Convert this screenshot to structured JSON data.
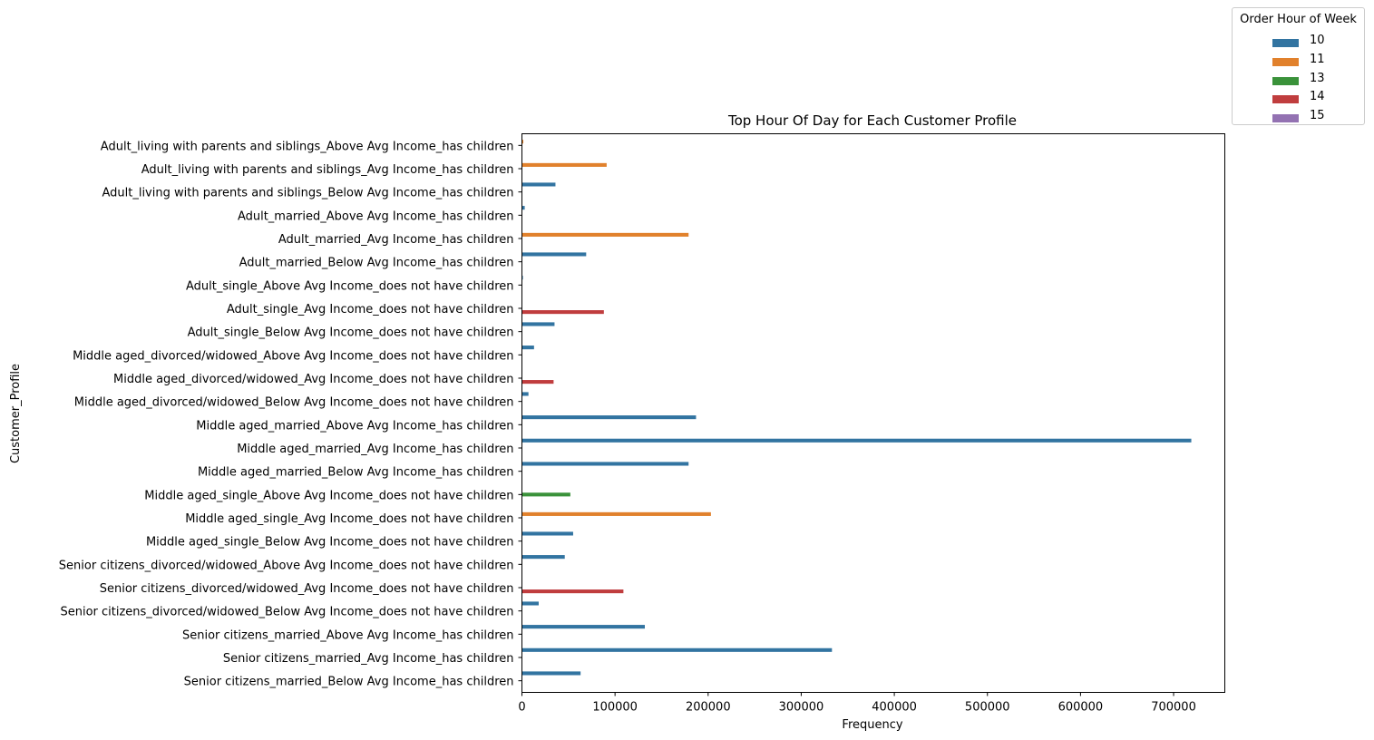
{
  "chart_data": {
    "type": "bar",
    "orientation": "horizontal",
    "title": "Top Hour Of Day for Each Customer Profile",
    "xlabel": "Frequency",
    "ylabel": "Customer_Profile",
    "xlim": [
      0,
      755000
    ],
    "xticks": [
      "0",
      "100000",
      "200000",
      "300000",
      "400000",
      "500000",
      "600000",
      "700000"
    ],
    "grid": false,
    "legend": {
      "title": "Order Hour of Week",
      "placement": "outside-top-right"
    },
    "hues": [
      {
        "name": "10",
        "color": "#3274a1"
      },
      {
        "name": "11",
        "color": "#e1812c"
      },
      {
        "name": "13",
        "color": "#3a923a"
      },
      {
        "name": "14",
        "color": "#c03d3e"
      },
      {
        "name": "15",
        "color": "#9372b2"
      }
    ],
    "categories": [
      {
        "label": "Adult_living with parents and siblings_Above Avg Income_has children",
        "hour": "11",
        "value": 1500
      },
      {
        "label": "Adult_living with parents and siblings_Avg Income_has children",
        "hour": "11",
        "value": 91000
      },
      {
        "label": "Adult_living with parents and siblings_Below Avg Income_has children",
        "hour": "10",
        "value": 36000
      },
      {
        "label": "Adult_married_Above Avg Income_has children",
        "hour": "10",
        "value": 3000
      },
      {
        "label": "Adult_married_Avg Income_has children",
        "hour": "11",
        "value": 179000
      },
      {
        "label": "Adult_married_Below Avg Income_has children",
        "hour": "10",
        "value": 69000
      },
      {
        "label": "Adult_single_Above Avg Income_does not have children",
        "hour": "10",
        "value": 1000
      },
      {
        "label": "Adult_single_Avg Income_does not have children",
        "hour": "14",
        "value": 88000
      },
      {
        "label": "Adult_single_Below Avg Income_does not have children",
        "hour": "10",
        "value": 35000
      },
      {
        "label": "Middle aged_divorced/widowed_Above Avg Income_does not have children",
        "hour": "10",
        "value": 13000
      },
      {
        "label": "Middle aged_divorced/widowed_Avg Income_does not have children",
        "hour": "14",
        "value": 34000
      },
      {
        "label": "Middle aged_divorced/widowed_Below Avg Income_does not have children",
        "hour": "10",
        "value": 7000
      },
      {
        "label": "Middle aged_married_Above Avg Income_has children",
        "hour": "10",
        "value": 187000
      },
      {
        "label": "Middle aged_married_Avg Income_has children",
        "hour": "10",
        "value": 719000
      },
      {
        "label": "Middle aged_married_Below Avg Income_has children",
        "hour": "10",
        "value": 179000
      },
      {
        "label": "Middle aged_single_Above Avg Income_does not have children",
        "hour": "13",
        "value": 52000
      },
      {
        "label": "Middle aged_single_Avg Income_does not have children",
        "hour": "11",
        "value": 203000
      },
      {
        "label": "Middle aged_single_Below Avg Income_does not have children",
        "hour": "10",
        "value": 55000
      },
      {
        "label": "Senior citizens_divorced/widowed_Above Avg Income_does not have children",
        "hour": "10",
        "value": 46000
      },
      {
        "label": "Senior citizens_divorced/widowed_Avg Income_does not have children",
        "hour": "14",
        "value": 109000
      },
      {
        "label": "Senior citizens_divorced/widowed_Below Avg Income_does not have children",
        "hour": "10",
        "value": 18000
      },
      {
        "label": "Senior citizens_married_Above Avg Income_has children",
        "hour": "10",
        "value": 132000
      },
      {
        "label": "Senior citizens_married_Avg Income_has children",
        "hour": "10",
        "value": 333000
      },
      {
        "label": "Senior citizens_married_Below Avg Income_has children",
        "hour": "10",
        "value": 63000
      }
    ]
  }
}
